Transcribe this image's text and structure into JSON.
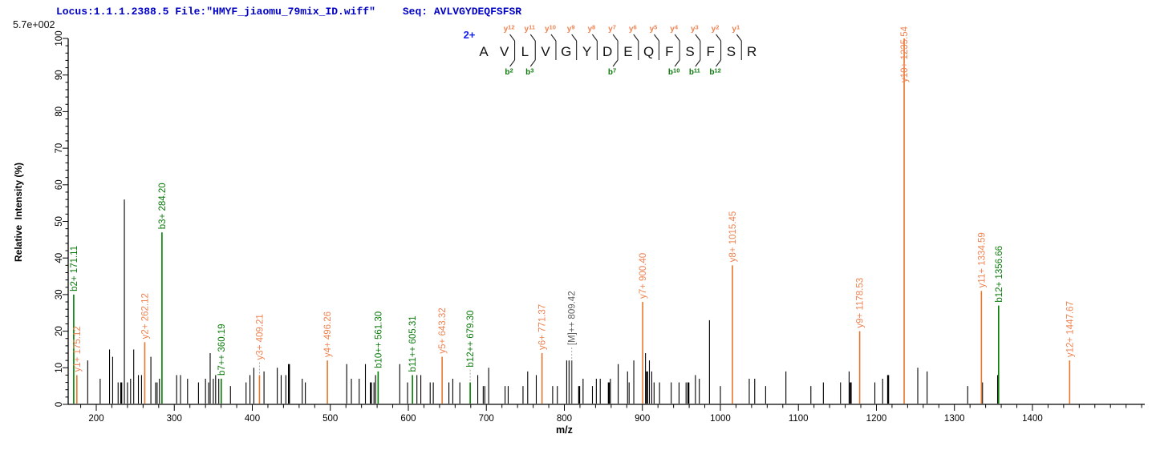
{
  "header": {
    "locus_file": "Locus:1.1.1.2388.5 File:\"HMYF_jiaomu_79mix_ID.wiff\"",
    "seq": "Seq: AVLVGYDEQFSFSR"
  },
  "base_peak_label": "5.7e+002",
  "peptide": {
    "charge_label": "2+",
    "residues": [
      "A",
      "V",
      "L",
      "V",
      "G",
      "Y",
      "D",
      "E",
      "Q",
      "F",
      "S",
      "F",
      "S",
      "R"
    ],
    "cuts": [
      {
        "after": 2,
        "y": "y12",
        "b": "b2"
      },
      {
        "after": 3,
        "y": "y11",
        "b": "b3"
      },
      {
        "after": 4,
        "y": "y10"
      },
      {
        "after": 5,
        "y": "y9"
      },
      {
        "after": 6,
        "y": "y8"
      },
      {
        "after": 7,
        "y": "y7",
        "b": "b7"
      },
      {
        "after": 8,
        "y": "y6"
      },
      {
        "after": 9,
        "y": "y5"
      },
      {
        "after": 10,
        "y": "y4",
        "b": "b10"
      },
      {
        "after": 11,
        "y": "y3",
        "b": "b11"
      },
      {
        "after": 12,
        "y": "y2",
        "b": "b12"
      },
      {
        "after": 13,
        "y": "y1"
      }
    ]
  },
  "chart_data": {
    "type": "bar",
    "subtype": "ms2-centroid-spectrum",
    "title": "",
    "xlabel": "m/z",
    "ylabel": "Relative  Intensity (%)",
    "xlim": [
      164,
      1544
    ],
    "ylim": [
      0,
      100
    ],
    "x_major_ticks": [
      200,
      300,
      400,
      500,
      600,
      700,
      800,
      900,
      1000,
      1100,
      1200,
      1300,
      1400
    ],
    "x_minor_step": 20,
    "y_major_step": 10,
    "y_minor_step": 2,
    "grid": false,
    "legend": "none",
    "labeled_peaks": [
      {
        "label": "b2+ 171.11",
        "mz": 171.11,
        "intensity": 30,
        "series": "b"
      },
      {
        "label": "y1+ 175.12",
        "mz": 175.12,
        "intensity": 8,
        "series": "y"
      },
      {
        "label": "y2+ 262.12",
        "mz": 262.12,
        "intensity": 17,
        "series": "y"
      },
      {
        "label": "b3+ 284.20",
        "mz": 284.2,
        "intensity": 47,
        "series": "b"
      },
      {
        "label": "b7++ 360.19",
        "mz": 360.19,
        "intensity": 7,
        "series": "b"
      },
      {
        "label": "y3+ 409.21",
        "mz": 409.21,
        "intensity": 8,
        "series": "y",
        "leader": true
      },
      {
        "label": "y4+ 496.26",
        "mz": 496.26,
        "intensity": 12,
        "series": "y"
      },
      {
        "label": "b10++ 561.30",
        "mz": 561.3,
        "intensity": 9,
        "series": "b"
      },
      {
        "label": "b11++ 605.31",
        "mz": 605.31,
        "intensity": 8,
        "series": "b"
      },
      {
        "label": "y5+ 643.32",
        "mz": 643.32,
        "intensity": 13,
        "series": "y"
      },
      {
        "label": "b12++ 679.30",
        "mz": 679.3,
        "intensity": 6,
        "series": "b",
        "leader": true
      },
      {
        "label": "y6+ 771.37",
        "mz": 771.37,
        "intensity": 14,
        "series": "y"
      },
      {
        "label": "[M]++ 809.42",
        "mz": 809.42,
        "intensity": 12,
        "series": "M",
        "leader": true
      },
      {
        "label": "y7+ 900.40",
        "mz": 900.4,
        "intensity": 28,
        "series": "y"
      },
      {
        "label": "y8+ 1015.45",
        "mz": 1015.45,
        "intensity": 38,
        "series": "y"
      },
      {
        "label": "y9+ 1178.53",
        "mz": 1178.53,
        "intensity": 20,
        "series": "y"
      },
      {
        "label": "y10+ 1235.54",
        "mz": 1235.54,
        "intensity": 100,
        "series": "y"
      },
      {
        "label": "y11+ 1334.59",
        "mz": 1334.59,
        "intensity": 31,
        "series": "y"
      },
      {
        "label": "b12+ 1356.66",
        "mz": 1356.66,
        "intensity": 27,
        "series": "b"
      },
      {
        "label": "y12+ 1447.67",
        "mz": 1447.67,
        "intensity": 12,
        "series": "y"
      }
    ],
    "unlabeled_peaks": [
      [
        189,
        12
      ],
      [
        205,
        7
      ],
      [
        217,
        15
      ],
      [
        221,
        13
      ],
      [
        228,
        6
      ],
      [
        232,
        6,
        2
      ],
      [
        236,
        56
      ],
      [
        240,
        6
      ],
      [
        244,
        7
      ],
      [
        248,
        15
      ],
      [
        254,
        8
      ],
      [
        258,
        8
      ],
      [
        270,
        13
      ],
      [
        276,
        6
      ],
      [
        278,
        6
      ],
      [
        281,
        7
      ],
      [
        303,
        8
      ],
      [
        308,
        8
      ],
      [
        317,
        7
      ],
      [
        331,
        6
      ],
      [
        340,
        7
      ],
      [
        344,
        6
      ],
      [
        346,
        14
      ],
      [
        350,
        7
      ],
      [
        353,
        8
      ],
      [
        357,
        7
      ],
      [
        372,
        5
      ],
      [
        392,
        6
      ],
      [
        397,
        8
      ],
      [
        402,
        10
      ],
      [
        415,
        9
      ],
      [
        432,
        10
      ],
      [
        437,
        8
      ],
      [
        443,
        8
      ],
      [
        447,
        11,
        2
      ],
      [
        464,
        7
      ],
      [
        468,
        6
      ],
      [
        521,
        11
      ],
      [
        527,
        7
      ],
      [
        537,
        7
      ],
      [
        545,
        11
      ],
      [
        552,
        6,
        2
      ],
      [
        556,
        6
      ],
      [
        558,
        8
      ],
      [
        589,
        11
      ],
      [
        599,
        6
      ],
      [
        611,
        8
      ],
      [
        616,
        8
      ],
      [
        628,
        6
      ],
      [
        632,
        6
      ],
      [
        652,
        6
      ],
      [
        657,
        7
      ],
      [
        666,
        6
      ],
      [
        689,
        8
      ],
      [
        696,
        5
      ],
      [
        698,
        5
      ],
      [
        703,
        10
      ],
      [
        724,
        5
      ],
      [
        728,
        5
      ],
      [
        747,
        5
      ],
      [
        753,
        9
      ],
      [
        764,
        8
      ],
      [
        785,
        5
      ],
      [
        791,
        5
      ],
      [
        803,
        12
      ],
      [
        806,
        12
      ],
      [
        819,
        5,
        2
      ],
      [
        824,
        7
      ],
      [
        836,
        5
      ],
      [
        841,
        7
      ],
      [
        846,
        7
      ],
      [
        857,
        6,
        2
      ],
      [
        859,
        7
      ],
      [
        869,
        11
      ],
      [
        881,
        9
      ],
      [
        883,
        6
      ],
      [
        889,
        12
      ],
      [
        904,
        14
      ],
      [
        906,
        9,
        2
      ],
      [
        909,
        12
      ],
      [
        912,
        9
      ],
      [
        915,
        6
      ],
      [
        922,
        6
      ],
      [
        937,
        6
      ],
      [
        947,
        6
      ],
      [
        956,
        6
      ],
      [
        959,
        6,
        2
      ],
      [
        968,
        8
      ],
      [
        973,
        7
      ],
      [
        986,
        23
      ],
      [
        1000,
        5
      ],
      [
        1037,
        7
      ],
      [
        1044,
        7
      ],
      [
        1058,
        5
      ],
      [
        1084,
        9
      ],
      [
        1116,
        5
      ],
      [
        1132,
        6
      ],
      [
        1154,
        6
      ],
      [
        1165,
        9
      ],
      [
        1167,
        6,
        2
      ],
      [
        1198,
        6
      ],
      [
        1208,
        7
      ],
      [
        1215,
        8,
        2
      ],
      [
        1253,
        10
      ],
      [
        1265,
        9
      ],
      [
        1317,
        5
      ],
      [
        1336,
        6
      ],
      [
        1356,
        8,
        2
      ]
    ],
    "colors": {
      "y_series": "#e8762d",
      "y_label": "#ef8352",
      "b_series": "#008000",
      "b_label": "#0b7a0b",
      "precursor": "#606060",
      "noise": "#000000",
      "axis": "#000000",
      "header_blue": "#0000c4",
      "charge_blue": "#1520ee",
      "leader_dash": "#aaaaaa"
    }
  }
}
